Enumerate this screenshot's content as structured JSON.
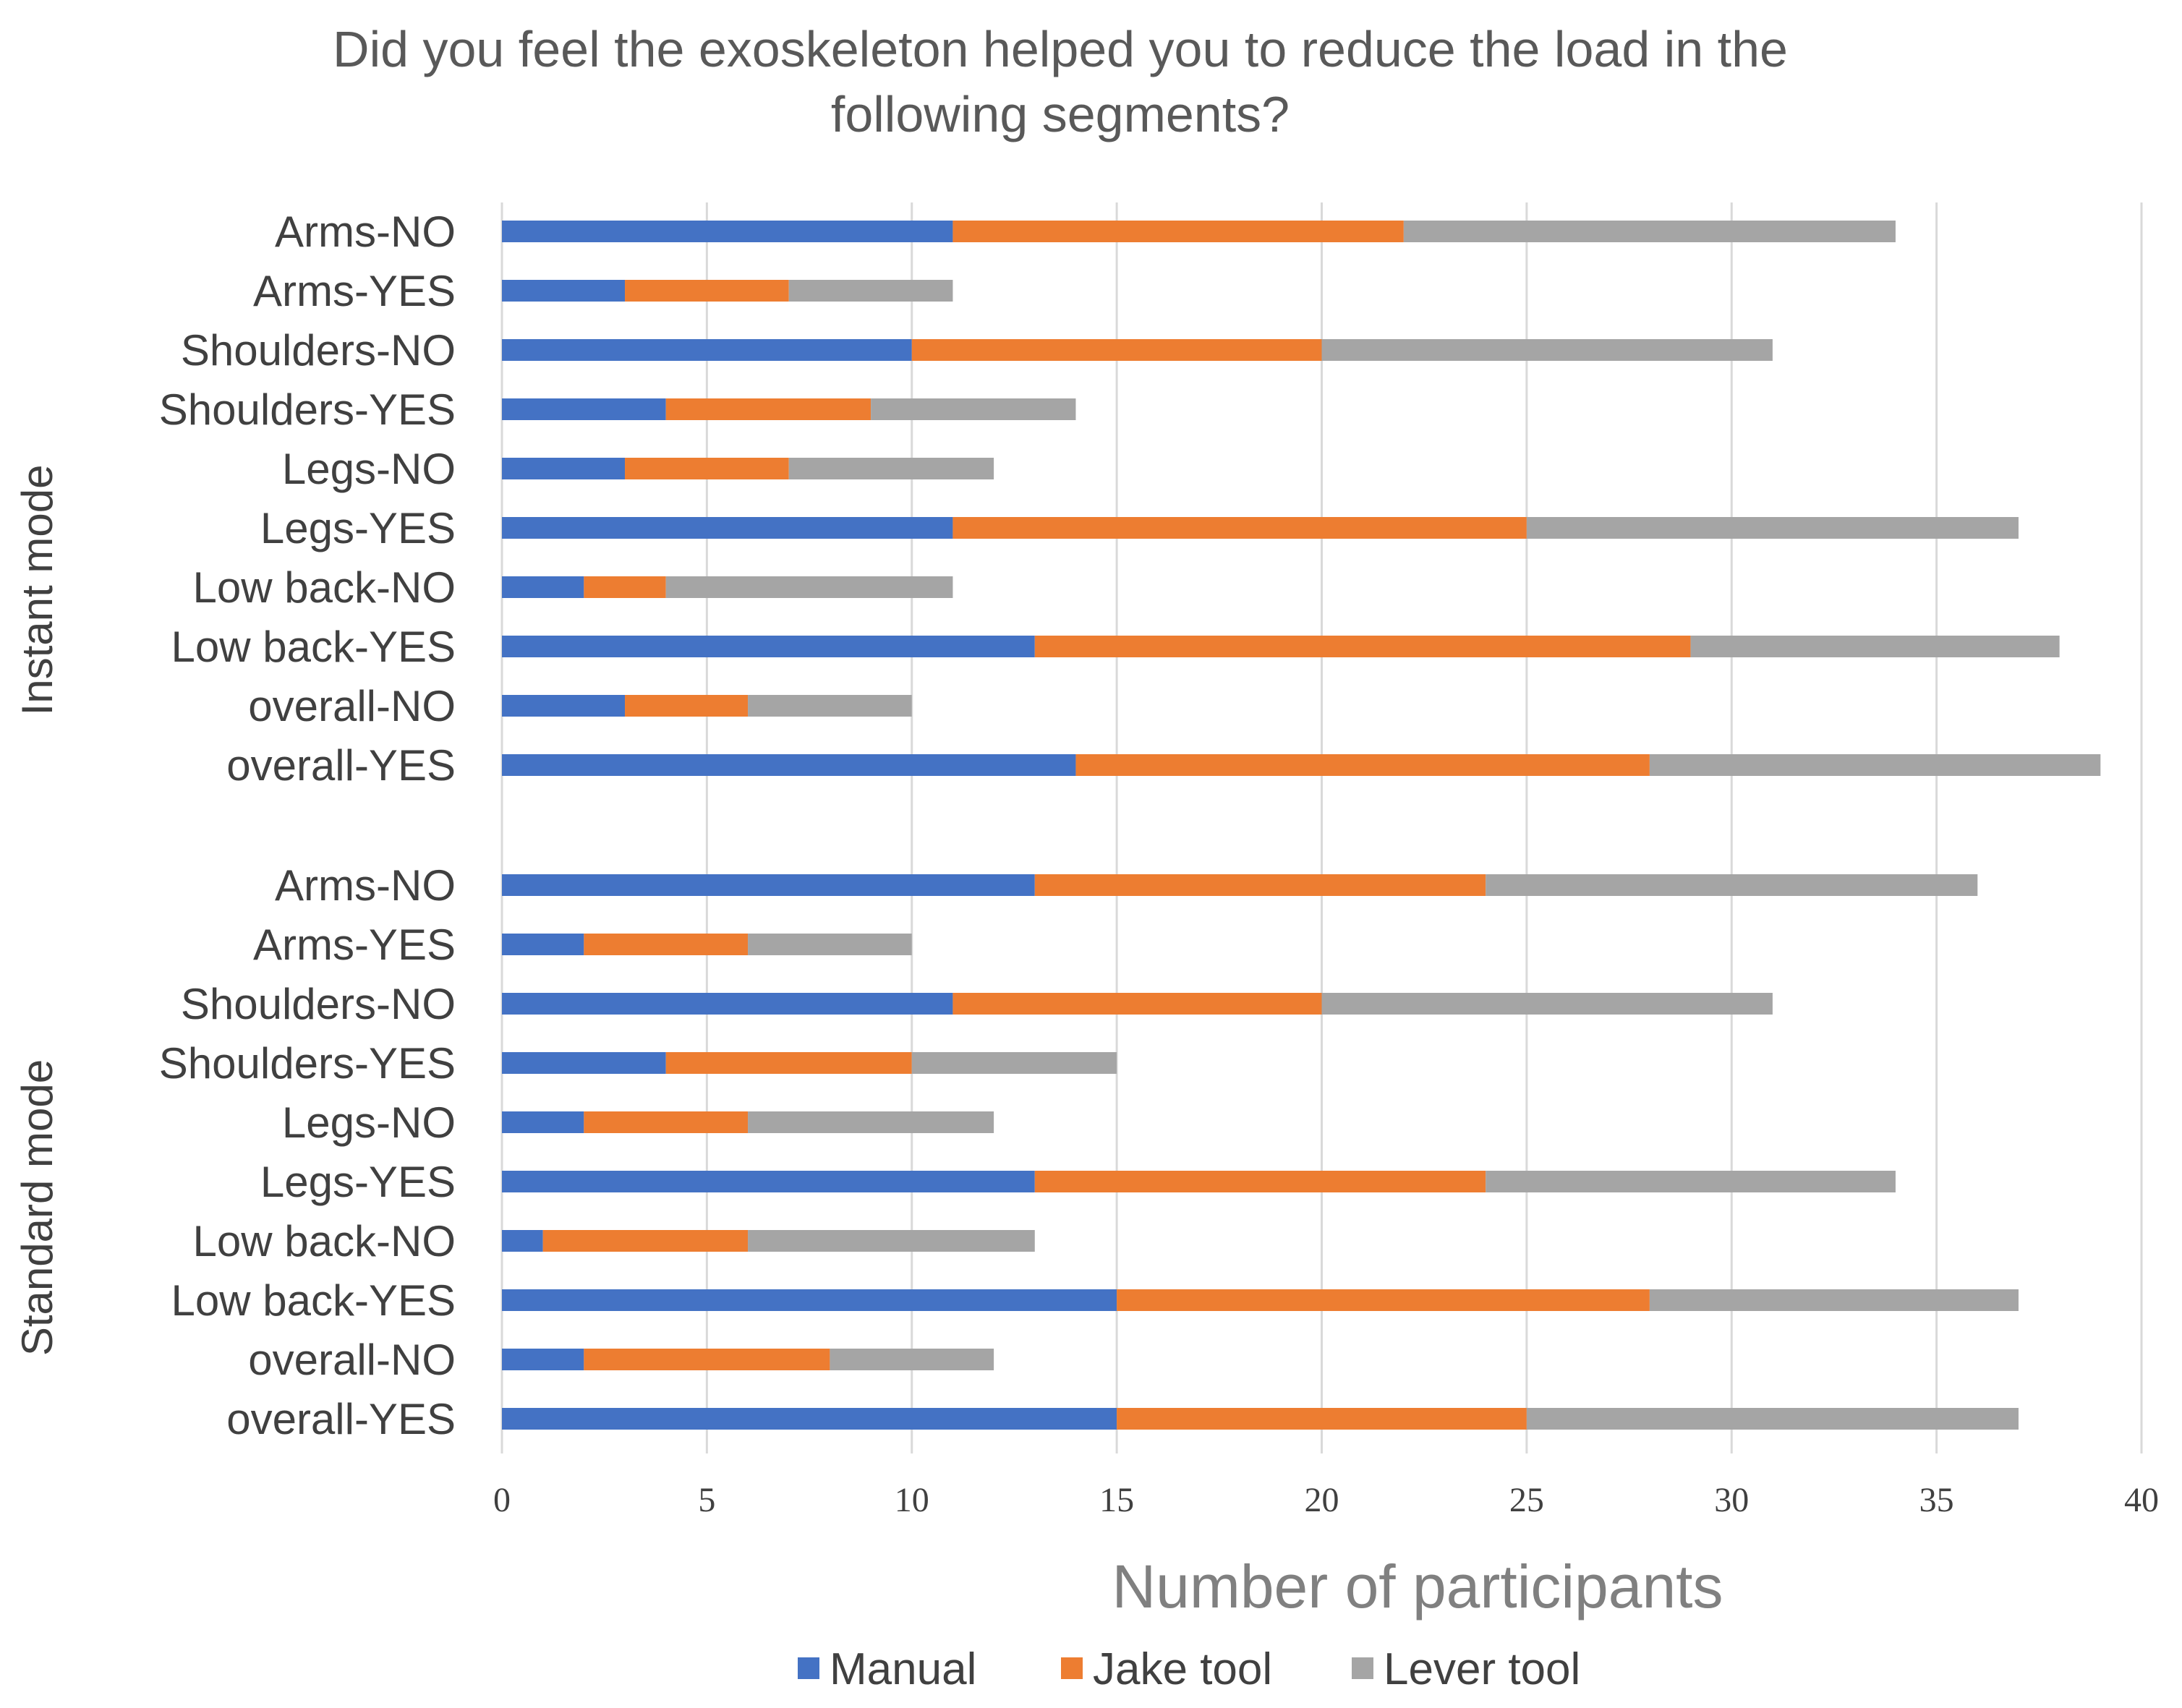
{
  "chart_data": {
    "type": "bar",
    "orientation": "horizontal",
    "stacked": true,
    "title": "Did you feel the exoskeleton helped you to reduce the load in the following segments?",
    "title_lines": [
      "Did you feel the exoskeleton helped you to reduce the load in the",
      "following segments?"
    ],
    "xlabel": "Number of participants",
    "xlim": [
      0,
      40
    ],
    "xticks": [
      0,
      5,
      10,
      15,
      20,
      25,
      30,
      35,
      40
    ],
    "grid": true,
    "legend_position": "bottom",
    "colors": {
      "Manual": "#4472C4",
      "Jake tool": "#ED7D31",
      "Lever tool": "#A5A5A5",
      "grid": "#D9D9D9"
    },
    "groups": [
      {
        "name": "Instant mode",
        "categories": [
          "Arms-NO",
          "Arms-YES",
          "Shoulders-NO",
          "Shoulders-YES",
          "Legs-NO",
          "Legs-YES",
          "Low back-NO",
          "Low back-YES",
          "overall-NO",
          "overall-YES"
        ],
        "series": [
          {
            "name": "Manual",
            "values": [
              11,
              3,
              10,
              4,
              3,
              11,
              2,
              13,
              3,
              14
            ]
          },
          {
            "name": "Jake tool",
            "values": [
              11,
              4,
              10,
              5,
              4,
              14,
              2,
              16,
              3,
              14
            ]
          },
          {
            "name": "Lever tool",
            "values": [
              12,
              4,
              11,
              5,
              5,
              12,
              7,
              9,
              4,
              11
            ]
          }
        ]
      },
      {
        "name": "Standard mode",
        "categories": [
          "Arms-NO",
          "Arms-YES",
          "Shoulders-NO",
          "Shoulders-YES",
          "Legs-NO",
          "Legs-YES",
          "Low back-NO",
          "Low back-YES",
          "overall-NO",
          "overall-YES"
        ],
        "series": [
          {
            "name": "Manual",
            "values": [
              13,
              2,
              11,
              4,
              2,
              13,
              1,
              15,
              2,
              15
            ]
          },
          {
            "name": "Jake tool",
            "values": [
              11,
              4,
              9,
              6,
              4,
              11,
              5,
              13,
              6,
              10
            ]
          },
          {
            "name": "Lever tool",
            "values": [
              12,
              4,
              11,
              5,
              6,
              10,
              7,
              9,
              4,
              12
            ]
          }
        ]
      }
    ]
  }
}
